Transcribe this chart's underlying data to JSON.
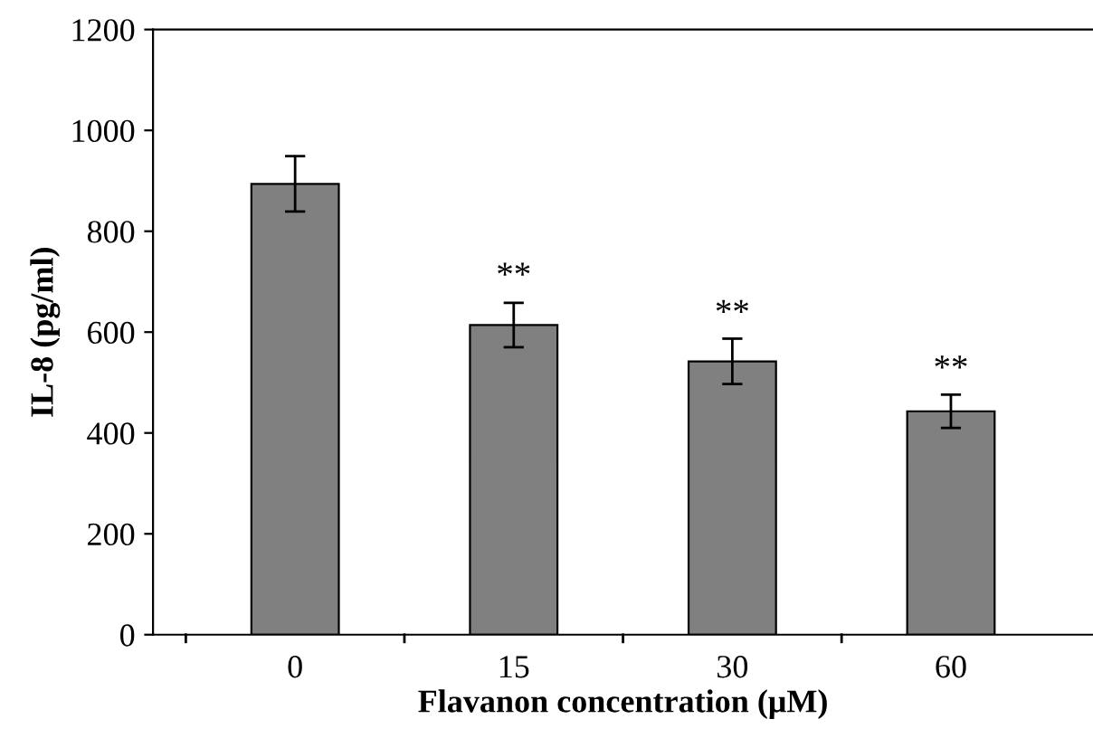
{
  "chart_data": {
    "type": "bar",
    "xlabel": "Flavanon concentration (μM)",
    "ylabel": "IL-8 (pg/ml)",
    "categories": [
      "0",
      "15",
      "30",
      "60"
    ],
    "values": [
      894,
      614,
      542,
      443
    ],
    "errors": [
      55,
      44,
      45,
      33
    ],
    "color": "#808080",
    "ylim": [
      0,
      1200
    ],
    "yticks": [
      0,
      200,
      400,
      600,
      800,
      1000,
      1200
    ],
    "grid": false,
    "annotations": [
      {
        "text": "**",
        "x": "15",
        "y": 657
      },
      {
        "text": "**",
        "x": "30",
        "y": 583
      },
      {
        "text": "**",
        "x": "60",
        "y": 473
      }
    ]
  }
}
